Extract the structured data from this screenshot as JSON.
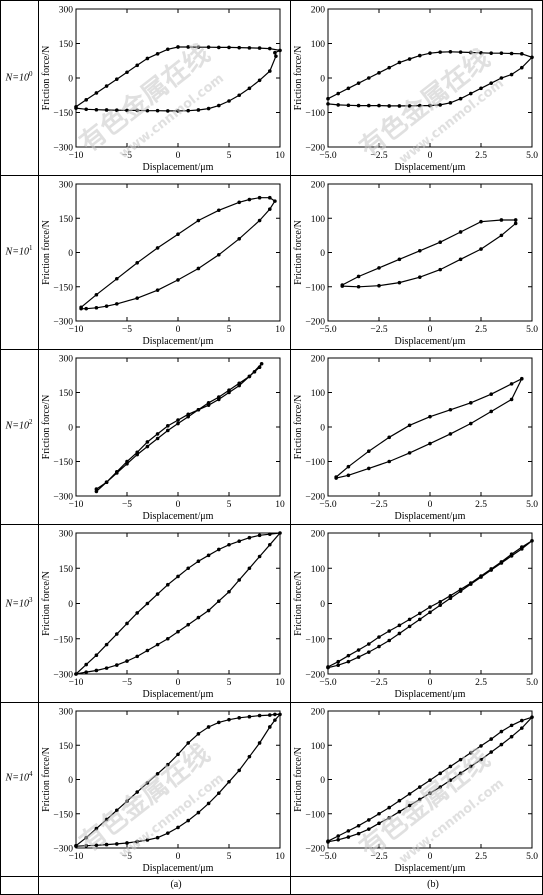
{
  "rows": [
    {
      "prefix": "N=10",
      "exponent": "0"
    },
    {
      "prefix": "N=10",
      "exponent": "1"
    },
    {
      "prefix": "N=10",
      "exponent": "2"
    },
    {
      "prefix": "N=10",
      "exponent": "3"
    },
    {
      "prefix": "N=10",
      "exponent": "4"
    }
  ],
  "columns": [
    {
      "label": "(a)"
    },
    {
      "label": "(b)"
    }
  ],
  "watermark": {
    "cn": "有色金属在线",
    "url": "www.cnnmol.com",
    "color": "#c8c8c8"
  },
  "style": {
    "line_color": "#000000"
  },
  "chart_data": [
    {
      "id": "a0",
      "type": "line",
      "xlabel": "Displacement/μm",
      "ylabel": "Friction force/N",
      "xlim": [
        -10,
        10
      ],
      "ylim": [
        -300,
        300
      ],
      "xticks": [
        -10,
        -5,
        0,
        5,
        10
      ],
      "xtick_labels": [
        "−10",
        "−5",
        "0",
        "5",
        "10"
      ],
      "yticks": [
        -300,
        -150,
        0,
        150,
        300
      ],
      "ytick_labels": [
        "−300",
        "−150",
        "0",
        "150",
        "300"
      ],
      "x": [
        -10,
        -9,
        -8,
        -7,
        -6,
        -5,
        -4,
        -3,
        -2,
        -1,
        0,
        1,
        2,
        3,
        4,
        5,
        6,
        7,
        8,
        9,
        10,
        9.5,
        9.6,
        9,
        8,
        7,
        6,
        5,
        4,
        3,
        2,
        1,
        0,
        -1,
        -2,
        -3,
        -4,
        -5,
        -6,
        -7,
        -8,
        -9,
        -10
      ],
      "y": [
        -125,
        -95,
        -65,
        -35,
        -5,
        25,
        55,
        85,
        105,
        125,
        135,
        135,
        134,
        134,
        133,
        133,
        132,
        131,
        130,
        128,
        120,
        110,
        95,
        30,
        -10,
        -45,
        -75,
        -100,
        -120,
        -133,
        -139,
        -142,
        -143,
        -143,
        -142,
        -142,
        -141,
        -141,
        -140,
        -139,
        -138,
        -136,
        -131
      ]
    },
    {
      "id": "b0",
      "type": "line",
      "xlabel": "Displacement/μm",
      "ylabel": "Friction force/N",
      "xlim": [
        -5,
        5
      ],
      "ylim": [
        -200,
        200
      ],
      "xticks": [
        -5,
        -2.5,
        0,
        2.5,
        5
      ],
      "xtick_labels": [
        "−5.0",
        "−2.5",
        "0",
        "2.5",
        "5.0"
      ],
      "yticks": [
        -200,
        -100,
        0,
        100,
        200
      ],
      "ytick_labels": [
        "−200",
        "−100",
        "0",
        "100",
        "200"
      ],
      "x": [
        -5,
        -4.5,
        -4,
        -3.5,
        -3,
        -2.5,
        -2,
        -1.5,
        -1,
        -0.5,
        0,
        0.5,
        1,
        1.5,
        2,
        2.5,
        3,
        3.5,
        4,
        4.5,
        5,
        4.5,
        4,
        3.5,
        3,
        2.5,
        2,
        1.5,
        1,
        0.5,
        0,
        -0.5,
        -1,
        -1.5,
        -2,
        -2.5,
        -3,
        -3.5,
        -4,
        -4.5,
        -5
      ],
      "y": [
        -60,
        -45,
        -30,
        -15,
        0,
        15,
        30,
        45,
        55,
        65,
        72,
        75,
        76,
        75,
        74,
        73,
        72,
        72,
        71,
        70,
        60,
        30,
        10,
        0,
        -15,
        -30,
        -45,
        -60,
        -72,
        -78,
        -80,
        -80,
        -81,
        -81,
        -81,
        -80,
        -80,
        -80,
        -79,
        -78,
        -75
      ]
    },
    {
      "id": "a1",
      "type": "line",
      "xlabel": "Displacement/μm",
      "ylabel": "Friction force/N",
      "xlim": [
        -10,
        10
      ],
      "ylim": [
        -300,
        300
      ],
      "xticks": [
        -10,
        -5,
        0,
        5,
        10
      ],
      "xtick_labels": [
        "−10",
        "−5",
        "0",
        "5",
        "10"
      ],
      "yticks": [
        -300,
        -150,
        0,
        150,
        300
      ],
      "ytick_labels": [
        "−300",
        "−150",
        "0",
        "150",
        "300"
      ],
      "x": [
        -9.5,
        -8,
        -6,
        -4,
        -2,
        0,
        2,
        4,
        6,
        7,
        8,
        9,
        9.5,
        9,
        8,
        6,
        4,
        2,
        0,
        -2,
        -4,
        -6,
        -7,
        -8,
        -9,
        -9.5
      ],
      "y": [
        -240,
        -185,
        -115,
        -45,
        20,
        80,
        140,
        185,
        220,
        232,
        240,
        240,
        225,
        190,
        140,
        60,
        -10,
        -70,
        -120,
        -165,
        -200,
        -225,
        -235,
        -242,
        -246,
        -246
      ]
    },
    {
      "id": "b1",
      "type": "line",
      "xlabel": "Displacement/μm",
      "ylabel": "Friction force/N",
      "xlim": [
        -5,
        5
      ],
      "ylim": [
        -200,
        200
      ],
      "xticks": [
        -5,
        -2.5,
        0,
        2.5,
        5
      ],
      "xtick_labels": [
        "−5.0",
        "−2.5",
        "0",
        "2.5",
        "5.0"
      ],
      "yticks": [
        -200,
        -100,
        0,
        100,
        200
      ],
      "ytick_labels": [
        "−200",
        "−100",
        "0",
        "100",
        "200"
      ],
      "x": [
        -4.3,
        -3.5,
        -2.5,
        -1.5,
        -0.5,
        0.5,
        1.5,
        2.5,
        3.5,
        4.2,
        4.2,
        3.5,
        2.5,
        1.5,
        0.5,
        -0.5,
        -1.5,
        -2.5,
        -3.5,
        -4.3
      ],
      "y": [
        -95,
        -70,
        -45,
        -20,
        5,
        30,
        60,
        90,
        95,
        95,
        85,
        50,
        10,
        -20,
        -50,
        -72,
        -88,
        -97,
        -100,
        -98
      ]
    },
    {
      "id": "a2",
      "type": "line",
      "xlabel": "Displacement/μm",
      "ylabel": "Friction force/N",
      "xlim": [
        -10,
        10
      ],
      "ylim": [
        -300,
        300
      ],
      "xticks": [
        -10,
        -5,
        0,
        5,
        10
      ],
      "xtick_labels": [
        "−10",
        "−5",
        "0",
        "5",
        "10"
      ],
      "yticks": [
        -300,
        -150,
        0,
        150,
        300
      ],
      "ytick_labels": [
        "−300",
        "−150",
        "0",
        "150",
        "300"
      ],
      "x": [
        -8,
        -7,
        -6,
        -5,
        -4,
        -3,
        -2,
        -1,
        0,
        1,
        2,
        3,
        4,
        5,
        6,
        7,
        7.5,
        8,
        8.2,
        7,
        6,
        5,
        4,
        3,
        2,
        1,
        0,
        -1,
        -2,
        -3,
        -4,
        -5,
        -6,
        -7,
        -8
      ],
      "y": [
        -280,
        -240,
        -200,
        -160,
        -120,
        -85,
        -50,
        -15,
        15,
        45,
        75,
        105,
        130,
        160,
        190,
        220,
        240,
        260,
        275,
        220,
        180,
        150,
        120,
        95,
        75,
        55,
        30,
        5,
        -30,
        -65,
        -110,
        -150,
        -195,
        -240,
        -270
      ]
    },
    {
      "id": "b2",
      "type": "line",
      "xlabel": "Displacement/μm",
      "ylabel": "Friction force/N",
      "xlim": [
        -5,
        5
      ],
      "ylim": [
        -200,
        200
      ],
      "xticks": [
        -5,
        -2.5,
        0,
        2.5,
        5
      ],
      "xtick_labels": [
        "−5.0",
        "−2.5",
        "0",
        "2.5",
        "5.0"
      ],
      "yticks": [
        -200,
        -100,
        0,
        100,
        200
      ],
      "ytick_labels": [
        "−200",
        "−100",
        "0",
        "100",
        "200"
      ],
      "x": [
        -4.6,
        -4,
        -3,
        -2,
        -1,
        0,
        1,
        2,
        3,
        4,
        4.5,
        4,
        3,
        2,
        1,
        0,
        -1,
        -2,
        -3,
        -4,
        -4.6
      ],
      "y": [
        -148,
        -140,
        -120,
        -100,
        -75,
        -48,
        -20,
        10,
        45,
        80,
        140,
        125,
        95,
        70,
        50,
        30,
        5,
        -30,
        -70,
        -115,
        -145
      ]
    },
    {
      "id": "a3",
      "type": "line",
      "xlabel": "Displacement/μm",
      "ylabel": "Friction force/N",
      "xlim": [
        -10,
        10
      ],
      "ylim": [
        -300,
        300
      ],
      "xticks": [
        -10,
        -5,
        0,
        5,
        10
      ],
      "xtick_labels": [
        "−10",
        "−5",
        "0",
        "5",
        "10"
      ],
      "yticks": [
        -300,
        -150,
        0,
        150,
        300
      ],
      "ytick_labels": [
        "−300",
        "−150",
        "0",
        "150",
        "300"
      ],
      "x": [
        -10,
        -9,
        -8,
        -7,
        -6,
        -5,
        -4,
        -3,
        -2,
        -1,
        0,
        1,
        2,
        3,
        4,
        5,
        6,
        7,
        8,
        9,
        10,
        9,
        8,
        7,
        6,
        5,
        4,
        3,
        2,
        1,
        0,
        -1,
        -2,
        -3,
        -4,
        -5,
        -6,
        -7,
        -8,
        -9,
        -10
      ],
      "y": [
        -300,
        -260,
        -220,
        -175,
        -130,
        -85,
        -40,
        0,
        40,
        80,
        115,
        150,
        180,
        205,
        230,
        250,
        265,
        280,
        290,
        295,
        300,
        250,
        200,
        150,
        100,
        50,
        10,
        -30,
        -60,
        -90,
        -120,
        -150,
        -175,
        -200,
        -225,
        -245,
        -262,
        -275,
        -285,
        -292,
        -300
      ]
    },
    {
      "id": "b3",
      "type": "line",
      "xlabel": "Displacement/μm",
      "ylabel": "Friction force/N",
      "xlim": [
        -5,
        5
      ],
      "ylim": [
        -200,
        200
      ],
      "xticks": [
        -5,
        -2.5,
        0,
        2.5,
        5
      ],
      "xtick_labels": [
        "−5.0",
        "−2.5",
        "0",
        "2.5",
        "5.0"
      ],
      "yticks": [
        -200,
        -100,
        0,
        100,
        200
      ],
      "ytick_labels": [
        "−200",
        "−100",
        "0",
        "100",
        "200"
      ],
      "x": [
        -5,
        -4.5,
        -4,
        -3.5,
        -3,
        -2.5,
        -2,
        -1.5,
        -1,
        -0.5,
        0,
        0.5,
        1,
        1.5,
        2,
        2.5,
        3,
        3.5,
        4,
        4.5,
        5,
        4.5,
        4,
        3.5,
        3,
        2.5,
        2,
        1.5,
        1,
        0.5,
        0,
        -0.5,
        -1,
        -1.5,
        -2,
        -2.5,
        -3,
        -3.5,
        -4,
        -4.5,
        -5
      ],
      "y": [
        -180,
        -165,
        -148,
        -132,
        -115,
        -95,
        -78,
        -62,
        -45,
        -28,
        -10,
        5,
        22,
        40,
        58,
        78,
        98,
        118,
        140,
        160,
        178,
        155,
        135,
        115,
        95,
        75,
        55,
        35,
        15,
        -5,
        -25,
        -45,
        -65,
        -85,
        -105,
        -122,
        -138,
        -152,
        -165,
        -175,
        -182
      ]
    },
    {
      "id": "a4",
      "type": "line",
      "xlabel": "Displacement/μm",
      "ylabel": "Friction force/N",
      "xlim": [
        -10,
        10
      ],
      "ylim": [
        -300,
        300
      ],
      "xticks": [
        -10,
        -5,
        0,
        5,
        10
      ],
      "xtick_labels": [
        "−10",
        "−5",
        "0",
        "5",
        "10"
      ],
      "yticks": [
        -300,
        -150,
        0,
        150,
        300
      ],
      "ytick_labels": [
        "−300",
        "−150",
        "0",
        "150",
        "300"
      ],
      "x": [
        -10,
        -9,
        -8,
        -7,
        -6,
        -5,
        -4,
        -3,
        -2,
        -1,
        0,
        1,
        2,
        3,
        4,
        5,
        6,
        7,
        8,
        9,
        9.5,
        10,
        9.5,
        9,
        8,
        7,
        6,
        5,
        4,
        3,
        2,
        1,
        0,
        -1,
        -2,
        -3,
        -4,
        -5,
        -6,
        -7,
        -8,
        -9,
        -10
      ],
      "y": [
        -290,
        -255,
        -215,
        -175,
        -135,
        -95,
        -55,
        -15,
        25,
        65,
        110,
        160,
        200,
        230,
        250,
        262,
        270,
        275,
        280,
        282,
        285,
        285,
        260,
        230,
        160,
        100,
        40,
        -10,
        -60,
        -105,
        -145,
        -180,
        -210,
        -235,
        -255,
        -265,
        -272,
        -278,
        -282,
        -285,
        -288,
        -290,
        -292
      ]
    },
    {
      "id": "b4",
      "type": "line",
      "xlabel": "Displacement/μm",
      "ylabel": "Friction force/N",
      "xlim": [
        -5,
        5
      ],
      "ylim": [
        -200,
        200
      ],
      "xticks": [
        -5,
        -2.5,
        0,
        2.5,
        5
      ],
      "xtick_labels": [
        "−5.0",
        "−2.5",
        "0",
        "2.5",
        "5.0"
      ],
      "yticks": [
        -200,
        -100,
        0,
        100,
        200
      ],
      "ytick_labels": [
        "−200",
        "−100",
        "0",
        "100",
        "200"
      ],
      "x": [
        -5,
        -4.5,
        -4,
        -3.5,
        -3,
        -2.5,
        -2,
        -1.5,
        -1,
        -0.5,
        0,
        0.5,
        1,
        1.5,
        2,
        2.5,
        3,
        3.5,
        4,
        4.5,
        5,
        4.5,
        4,
        3.5,
        3,
        2.5,
        2,
        1.5,
        1,
        0.5,
        0,
        -0.5,
        -1,
        -1.5,
        -2,
        -2.5,
        -3,
        -3.5,
        -4,
        -4.5,
        -5
      ],
      "y": [
        -180,
        -165,
        -150,
        -135,
        -118,
        -100,
        -82,
        -62,
        -42,
        -22,
        -2,
        18,
        38,
        58,
        78,
        98,
        118,
        140,
        158,
        172,
        182,
        150,
        125,
        102,
        80,
        58,
        38,
        18,
        -2,
        -22,
        -40,
        -58,
        -76,
        -94,
        -112,
        -128,
        -145,
        -158,
        -168,
        -176,
        -182
      ]
    }
  ]
}
